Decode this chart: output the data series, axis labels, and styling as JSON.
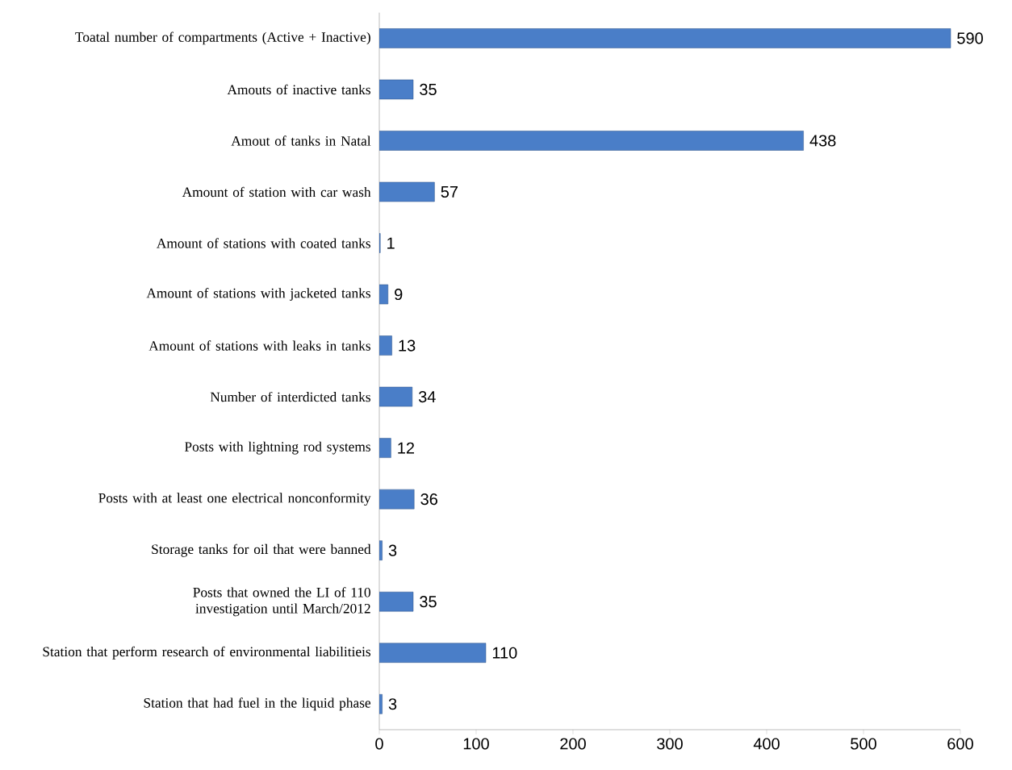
{
  "chart_data": {
    "type": "bar",
    "orientation": "horizontal",
    "categories": [
      "Toatal number of compartments (Active + Inactive)",
      "Amouts of inactive tanks",
      "Amout of tanks in Natal",
      "Amount of station with car wash",
      "Amount of stations with coated tanks",
      "Amount of stations with jacketed tanks",
      "Amount of stations with leaks in tanks",
      "Number of interdicted tanks",
      "Posts with lightning rod systems",
      "Posts with at least one electrical nonconformity",
      "Storage tanks for oil that were banned",
      "Posts that owned the LI of 110 investigation until March/2012",
      "Station that perform research of environmental liabilitieis",
      "Station that had fuel in the liquid phase"
    ],
    "values": [
      590,
      35,
      438,
      57,
      1,
      9,
      13,
      34,
      12,
      36,
      3,
      35,
      110,
      3
    ],
    "color": "#4a7ec8",
    "xlim": [
      0,
      600
    ],
    "xticks": [
      0,
      100,
      200,
      300,
      400,
      500,
      600
    ],
    "data_labels": true
  }
}
